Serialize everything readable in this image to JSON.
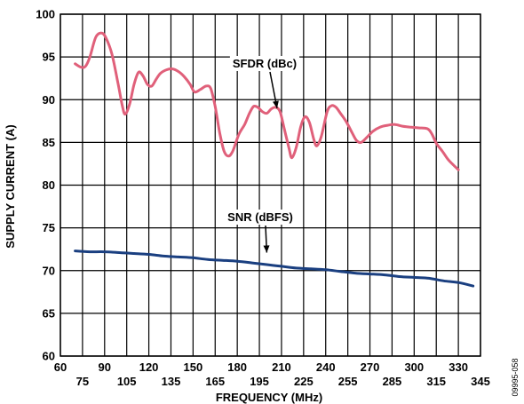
{
  "chart_data": {
    "type": "line",
    "xlabel": "FREQUENCY (MHz)",
    "ylabel": "SUPPLY CURRENT (A)",
    "xlim": [
      60,
      345
    ],
    "ylim": [
      60,
      100
    ],
    "x_ticks": [
      60,
      75,
      90,
      105,
      120,
      135,
      150,
      165,
      180,
      195,
      210,
      225,
      240,
      255,
      270,
      285,
      300,
      315,
      330,
      345
    ],
    "y_ticks": [
      60,
      65,
      70,
      75,
      80,
      85,
      90,
      95,
      100
    ],
    "grid": true,
    "series": [
      {
        "name": "SFDR (dBc)",
        "color": "#e0607a",
        "points": [
          [
            70,
            94.2
          ],
          [
            74,
            93.8
          ],
          [
            77,
            93.9
          ],
          [
            80,
            95.0
          ],
          [
            84,
            97.3
          ],
          [
            88,
            97.8
          ],
          [
            91,
            97.2
          ],
          [
            95,
            95.3
          ],
          [
            99,
            92.0
          ],
          [
            102,
            89.3
          ],
          [
            104,
            88.3
          ],
          [
            107,
            89.5
          ],
          [
            110,
            91.8
          ],
          [
            113,
            93.2
          ],
          [
            116,
            92.8
          ],
          [
            119,
            91.8
          ],
          [
            122,
            91.6
          ],
          [
            125,
            92.4
          ],
          [
            128,
            93.1
          ],
          [
            132,
            93.5
          ],
          [
            136,
            93.6
          ],
          [
            140,
            93.3
          ],
          [
            144,
            92.7
          ],
          [
            148,
            91.8
          ],
          [
            151,
            90.9
          ],
          [
            155,
            91.2
          ],
          [
            159,
            91.6
          ],
          [
            162,
            91.3
          ],
          [
            165,
            89.2
          ],
          [
            168,
            86.2
          ],
          [
            171,
            84.0
          ],
          [
            174,
            83.4
          ],
          [
            177,
            84.0
          ],
          [
            181,
            85.9
          ],
          [
            185,
            87.1
          ],
          [
            188,
            88.3
          ],
          [
            191,
            89.2
          ],
          [
            194,
            89.1
          ],
          [
            197,
            88.6
          ],
          [
            200,
            88.4
          ],
          [
            203,
            88.9
          ],
          [
            206,
            89.1
          ],
          [
            209,
            88.6
          ],
          [
            212,
            86.5
          ],
          [
            215,
            84.4
          ],
          [
            217,
            83.2
          ],
          [
            220,
            84.4
          ],
          [
            223,
            86.8
          ],
          [
            226,
            88.0
          ],
          [
            229,
            87.3
          ],
          [
            232,
            85.3
          ],
          [
            234,
            84.6
          ],
          [
            237,
            85.7
          ],
          [
            241,
            88.6
          ],
          [
            244,
            89.3
          ],
          [
            247,
            89.1
          ],
          [
            250,
            88.4
          ],
          [
            254,
            87.4
          ],
          [
            258,
            86.1
          ],
          [
            261,
            85.2
          ],
          [
            264,
            85.0
          ],
          [
            268,
            85.6
          ],
          [
            272,
            86.3
          ],
          [
            277,
            86.8
          ],
          [
            282,
            87.0
          ],
          [
            287,
            87.1
          ],
          [
            292,
            86.9
          ],
          [
            297,
            86.8
          ],
          [
            303,
            86.7
          ],
          [
            309,
            86.6
          ],
          [
            312,
            86.0
          ],
          [
            315,
            84.9
          ],
          [
            319,
            84.0
          ],
          [
            323,
            83.0
          ],
          [
            327,
            82.3
          ],
          [
            330,
            81.8
          ]
        ]
      },
      {
        "name": "SNR (dBFS)",
        "color": "#1a3f80",
        "points": [
          [
            70,
            72.3
          ],
          [
            80,
            72.2
          ],
          [
            90,
            72.2
          ],
          [
            100,
            72.1
          ],
          [
            110,
            72.0
          ],
          [
            120,
            71.9
          ],
          [
            130,
            71.7
          ],
          [
            140,
            71.6
          ],
          [
            150,
            71.5
          ],
          [
            160,
            71.3
          ],
          [
            170,
            71.2
          ],
          [
            180,
            71.1
          ],
          [
            190,
            70.9
          ],
          [
            200,
            70.7
          ],
          [
            210,
            70.5
          ],
          [
            220,
            70.3
          ],
          [
            230,
            70.2
          ],
          [
            240,
            70.1
          ],
          [
            250,
            69.9
          ],
          [
            260,
            69.7
          ],
          [
            270,
            69.6
          ],
          [
            280,
            69.5
          ],
          [
            290,
            69.3
          ],
          [
            300,
            69.2
          ],
          [
            310,
            69.1
          ],
          [
            320,
            68.8
          ],
          [
            330,
            68.6
          ],
          [
            340,
            68.2
          ]
        ]
      }
    ],
    "annotations": [
      {
        "text": "SFDR (dBc)",
        "target": [
          207,
          88.9
        ]
      },
      {
        "text": "SNR (dBFS)",
        "target": [
          200,
          72.0
        ]
      }
    ],
    "figure_id": "09995-058"
  }
}
